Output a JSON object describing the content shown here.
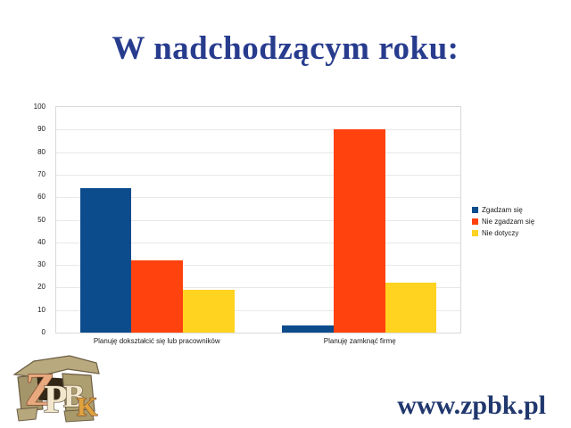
{
  "slide": {
    "title": "W nadchodzącym roku:",
    "title_color": "#283c8e",
    "url": "www.zpbk.pl",
    "url_color": "#21386e"
  },
  "logo": {
    "letters": [
      "Z",
      "P",
      "B",
      "K"
    ]
  },
  "chart_data": {
    "type": "bar",
    "title": "",
    "categories": [
      "Planuję dokształcić się lub pracowników",
      "Planuję zamknąć firmę"
    ],
    "series": [
      {
        "name": "Zgadzam się",
        "color": "#0C4C8C",
        "values": [
          64,
          3
        ]
      },
      {
        "name": "Nie zgadzam się",
        "color": "#FF420E",
        "values": [
          32,
          90
        ]
      },
      {
        "name": "Nie dotyczy",
        "color": "#FFD320",
        "values": [
          19,
          22
        ]
      }
    ],
    "xlabel": "",
    "ylabel": "",
    "ylim": [
      0,
      100
    ],
    "yticks": [
      0,
      10,
      20,
      30,
      40,
      50,
      60,
      70,
      80,
      90,
      100
    ],
    "grid": true,
    "legend_position": "right",
    "bar_group_fill_ratio": 0.765
  }
}
